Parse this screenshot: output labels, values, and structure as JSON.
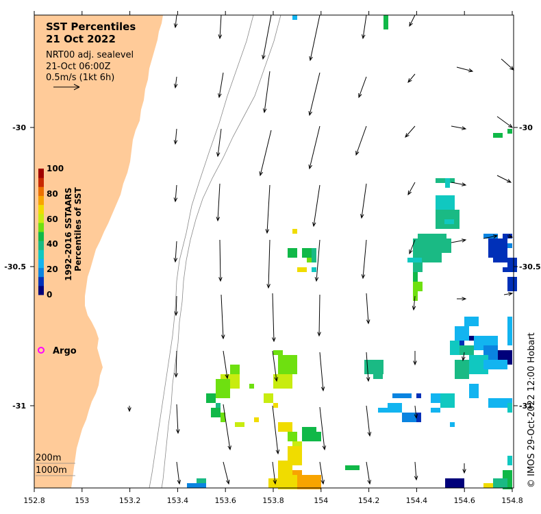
{
  "title": {
    "line1": "SST Percentiles",
    "line2": "21 Oct 2022",
    "product": "NRT00 adj. sealevel",
    "time": "21-Oct 06:00Z",
    "vector_scale": "0.5m/s (1kt 6h)"
  },
  "colorbar": {
    "title_line1": "1992-2016 SSTAARS",
    "title_line2": "Percentiles of SST",
    "ticks": [
      "0",
      "20",
      "40",
      "60",
      "80",
      "100"
    ],
    "colors": [
      "#00007a",
      "#0030b8",
      "#0a84e0",
      "#12b4f0",
      "#10c8c0",
      "#1aba84",
      "#10b848",
      "#6ee010",
      "#c8ec10",
      "#f0dc00",
      "#f8a400",
      "#ec7000",
      "#c82800",
      "#a00000"
    ]
  },
  "legend": {
    "argo_label": "Argo",
    "argo_color": "#ff00ff",
    "contour_label_1": "200m",
    "contour_label_2": "1000m"
  },
  "axes": {
    "x_ticks": [
      "152.8",
      "153",
      "153.2",
      "153.4",
      "153.6",
      "153.8",
      "154",
      "154.2",
      "154.4",
      "154.6",
      "154.8"
    ],
    "y_ticks": [
      "-30",
      "-30.5",
      "-31"
    ]
  },
  "credit": "© IMOS 29-Oct-2022 12:00 Hobart",
  "colors": {
    "land": "#ffcb99",
    "ocean": "#ffffff",
    "vector": "#000000",
    "contour": "#888888"
  }
}
